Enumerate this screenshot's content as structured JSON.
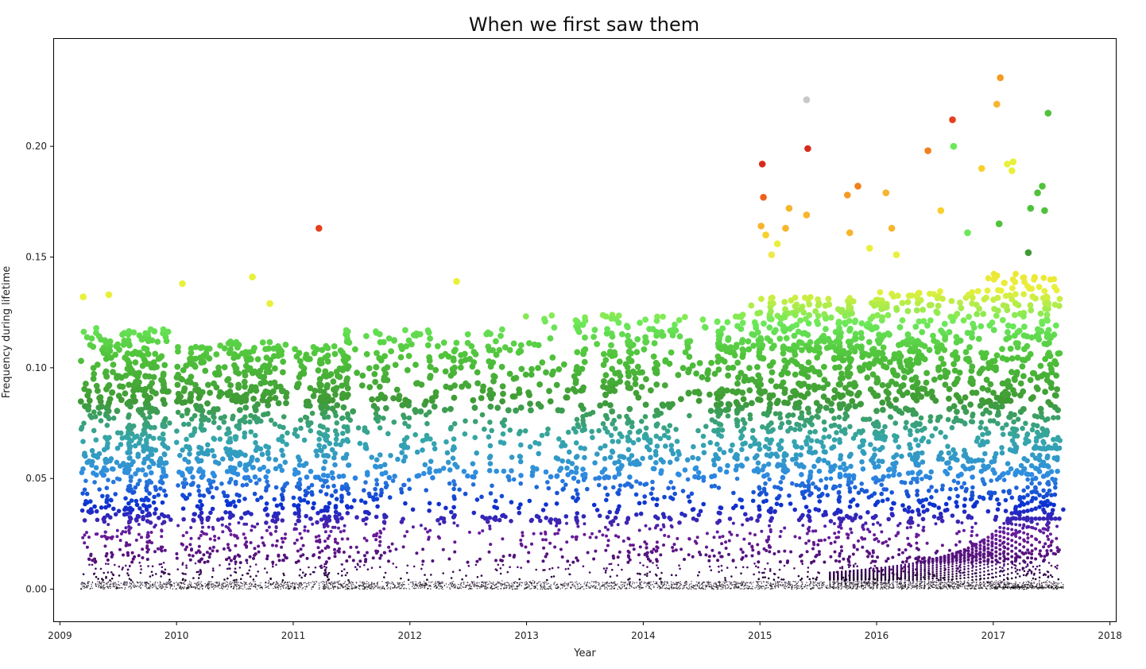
{
  "chart_data": {
    "type": "scatter",
    "title": "When we first saw them",
    "xlabel": "Year",
    "ylabel": "Frequency during lifetime",
    "xlim": [
      2008.95,
      2018.05
    ],
    "ylim": [
      -0.0145,
      0.2485
    ],
    "x_ticks": [
      2009,
      2010,
      2011,
      2012,
      2013,
      2014,
      2015,
      2016,
      2017,
      2018
    ],
    "x_tick_labels": [
      "2009",
      "2010",
      "2011",
      "2012",
      "2013",
      "2014",
      "2015",
      "2016",
      "2017",
      "2018"
    ],
    "y_ticks": [
      0.0,
      0.05,
      0.1,
      0.15,
      0.2
    ],
    "y_tick_labels": [
      "0.00",
      "0.05",
      "0.10",
      "0.15",
      "0.20"
    ],
    "grid": false,
    "legend": "none",
    "colormap": "frequency-scaled: black → purple → blue → teal → green → yellow → orange → red",
    "color_stops": [
      {
        "y": 0.0,
        "color": "#000000"
      },
      {
        "y": 0.01,
        "color": "#4b0e6e"
      },
      {
        "y": 0.025,
        "color": "#6a1b9a"
      },
      {
        "y": 0.038,
        "color": "#0a2fd0"
      },
      {
        "y": 0.052,
        "color": "#2f8ee0"
      },
      {
        "y": 0.068,
        "color": "#35a6a8"
      },
      {
        "y": 0.085,
        "color": "#3f9a35"
      },
      {
        "y": 0.105,
        "color": "#4fc23a"
      },
      {
        "y": 0.12,
        "color": "#6be85a"
      },
      {
        "y": 0.135,
        "color": "#e8f03c"
      },
      {
        "y": 0.16,
        "color": "#f7d02c"
      },
      {
        "y": 0.175,
        "color": "#f59a22"
      },
      {
        "y": 0.19,
        "color": "#e4401e"
      },
      {
        "y": 0.2,
        "color": "#d82a1c"
      }
    ],
    "outliers": [
      {
        "x": 2011.22,
        "y": 0.163,
        "color": "#e4401e"
      },
      {
        "x": 2009.2,
        "y": 0.132,
        "color": "#e8f03c"
      },
      {
        "x": 2009.42,
        "y": 0.133,
        "color": "#e8f03c"
      },
      {
        "x": 2010.05,
        "y": 0.138,
        "color": "#e8f03c"
      },
      {
        "x": 2010.65,
        "y": 0.141,
        "color": "#e8f03c"
      },
      {
        "x": 2010.8,
        "y": 0.129,
        "color": "#e8f03c"
      },
      {
        "x": 2012.4,
        "y": 0.139,
        "color": "#e8f03c"
      },
      {
        "x": 2015.02,
        "y": 0.192,
        "color": "#d82a1c"
      },
      {
        "x": 2015.03,
        "y": 0.177,
        "color": "#f0601e"
      },
      {
        "x": 2015.01,
        "y": 0.164,
        "color": "#f7b52c"
      },
      {
        "x": 2015.05,
        "y": 0.16,
        "color": "#f7d02c"
      },
      {
        "x": 2015.1,
        "y": 0.151,
        "color": "#f0e84a"
      },
      {
        "x": 2015.15,
        "y": 0.156,
        "color": "#e8f03c"
      },
      {
        "x": 2015.25,
        "y": 0.172,
        "color": "#f7b52c"
      },
      {
        "x": 2015.22,
        "y": 0.163,
        "color": "#f7b52c"
      },
      {
        "x": 2015.4,
        "y": 0.221,
        "color": "#c8c8c8"
      },
      {
        "x": 2015.41,
        "y": 0.199,
        "color": "#d82a1c"
      },
      {
        "x": 2015.4,
        "y": 0.169,
        "color": "#f7b52c"
      },
      {
        "x": 2015.75,
        "y": 0.178,
        "color": "#f59a22"
      },
      {
        "x": 2015.84,
        "y": 0.182,
        "color": "#f0801e"
      },
      {
        "x": 2015.77,
        "y": 0.161,
        "color": "#f7b52c"
      },
      {
        "x": 2015.94,
        "y": 0.154,
        "color": "#e8f03c"
      },
      {
        "x": 2016.08,
        "y": 0.179,
        "color": "#f7b52c"
      },
      {
        "x": 2016.13,
        "y": 0.163,
        "color": "#f7b52c"
      },
      {
        "x": 2016.17,
        "y": 0.151,
        "color": "#e8f03c"
      },
      {
        "x": 2016.44,
        "y": 0.198,
        "color": "#f0801e"
      },
      {
        "x": 2016.55,
        "y": 0.171,
        "color": "#f7d02c"
      },
      {
        "x": 2016.65,
        "y": 0.212,
        "color": "#e4401e"
      },
      {
        "x": 2016.66,
        "y": 0.2,
        "color": "#6be85a"
      },
      {
        "x": 2016.78,
        "y": 0.161,
        "color": "#6be85a"
      },
      {
        "x": 2016.9,
        "y": 0.19,
        "color": "#f7d02c"
      },
      {
        "x": 2017.06,
        "y": 0.231,
        "color": "#f59a22"
      },
      {
        "x": 2017.03,
        "y": 0.219,
        "color": "#f7b52c"
      },
      {
        "x": 2017.12,
        "y": 0.192,
        "color": "#e8f03c"
      },
      {
        "x": 2017.17,
        "y": 0.193,
        "color": "#e8f03c"
      },
      {
        "x": 2017.16,
        "y": 0.189,
        "color": "#e8f03c"
      },
      {
        "x": 2017.47,
        "y": 0.215,
        "color": "#4fc23a"
      },
      {
        "x": 2017.05,
        "y": 0.165,
        "color": "#4fc23a"
      },
      {
        "x": 2017.32,
        "y": 0.172,
        "color": "#4fc23a"
      },
      {
        "x": 2017.38,
        "y": 0.179,
        "color": "#4fc23a"
      },
      {
        "x": 2017.42,
        "y": 0.182,
        "color": "#4fc23a"
      },
      {
        "x": 2017.44,
        "y": 0.171,
        "color": "#4fc23a"
      },
      {
        "x": 2017.3,
        "y": 0.152,
        "color": "#3f9a35"
      }
    ],
    "segments": [
      {
        "x_start": 2009.18,
        "x_end": 2009.95,
        "density": 1.0,
        "y_max": 0.118
      },
      {
        "x_start": 2010.0,
        "x_end": 2010.95,
        "density": 0.85,
        "y_max": 0.112
      },
      {
        "x_start": 2011.0,
        "x_end": 2011.45,
        "density": 0.9,
        "y_max": 0.11
      },
      {
        "x_start": 2011.45,
        "x_end": 2012.98,
        "density": 0.45,
        "y_max": 0.118
      },
      {
        "x_start": 2012.98,
        "x_end": 2014.9,
        "density": 0.55,
        "y_max": 0.124
      },
      {
        "x_start": 2014.9,
        "x_end": 2016.0,
        "density": 0.95,
        "y_max": 0.132
      },
      {
        "x_start": 2016.0,
        "x_end": 2016.95,
        "density": 0.9,
        "y_max": 0.135
      },
      {
        "x_start": 2016.95,
        "x_end": 2017.58,
        "density": 1.0,
        "y_max": 0.143
      }
    ],
    "data_end_x": 2017.6
  }
}
